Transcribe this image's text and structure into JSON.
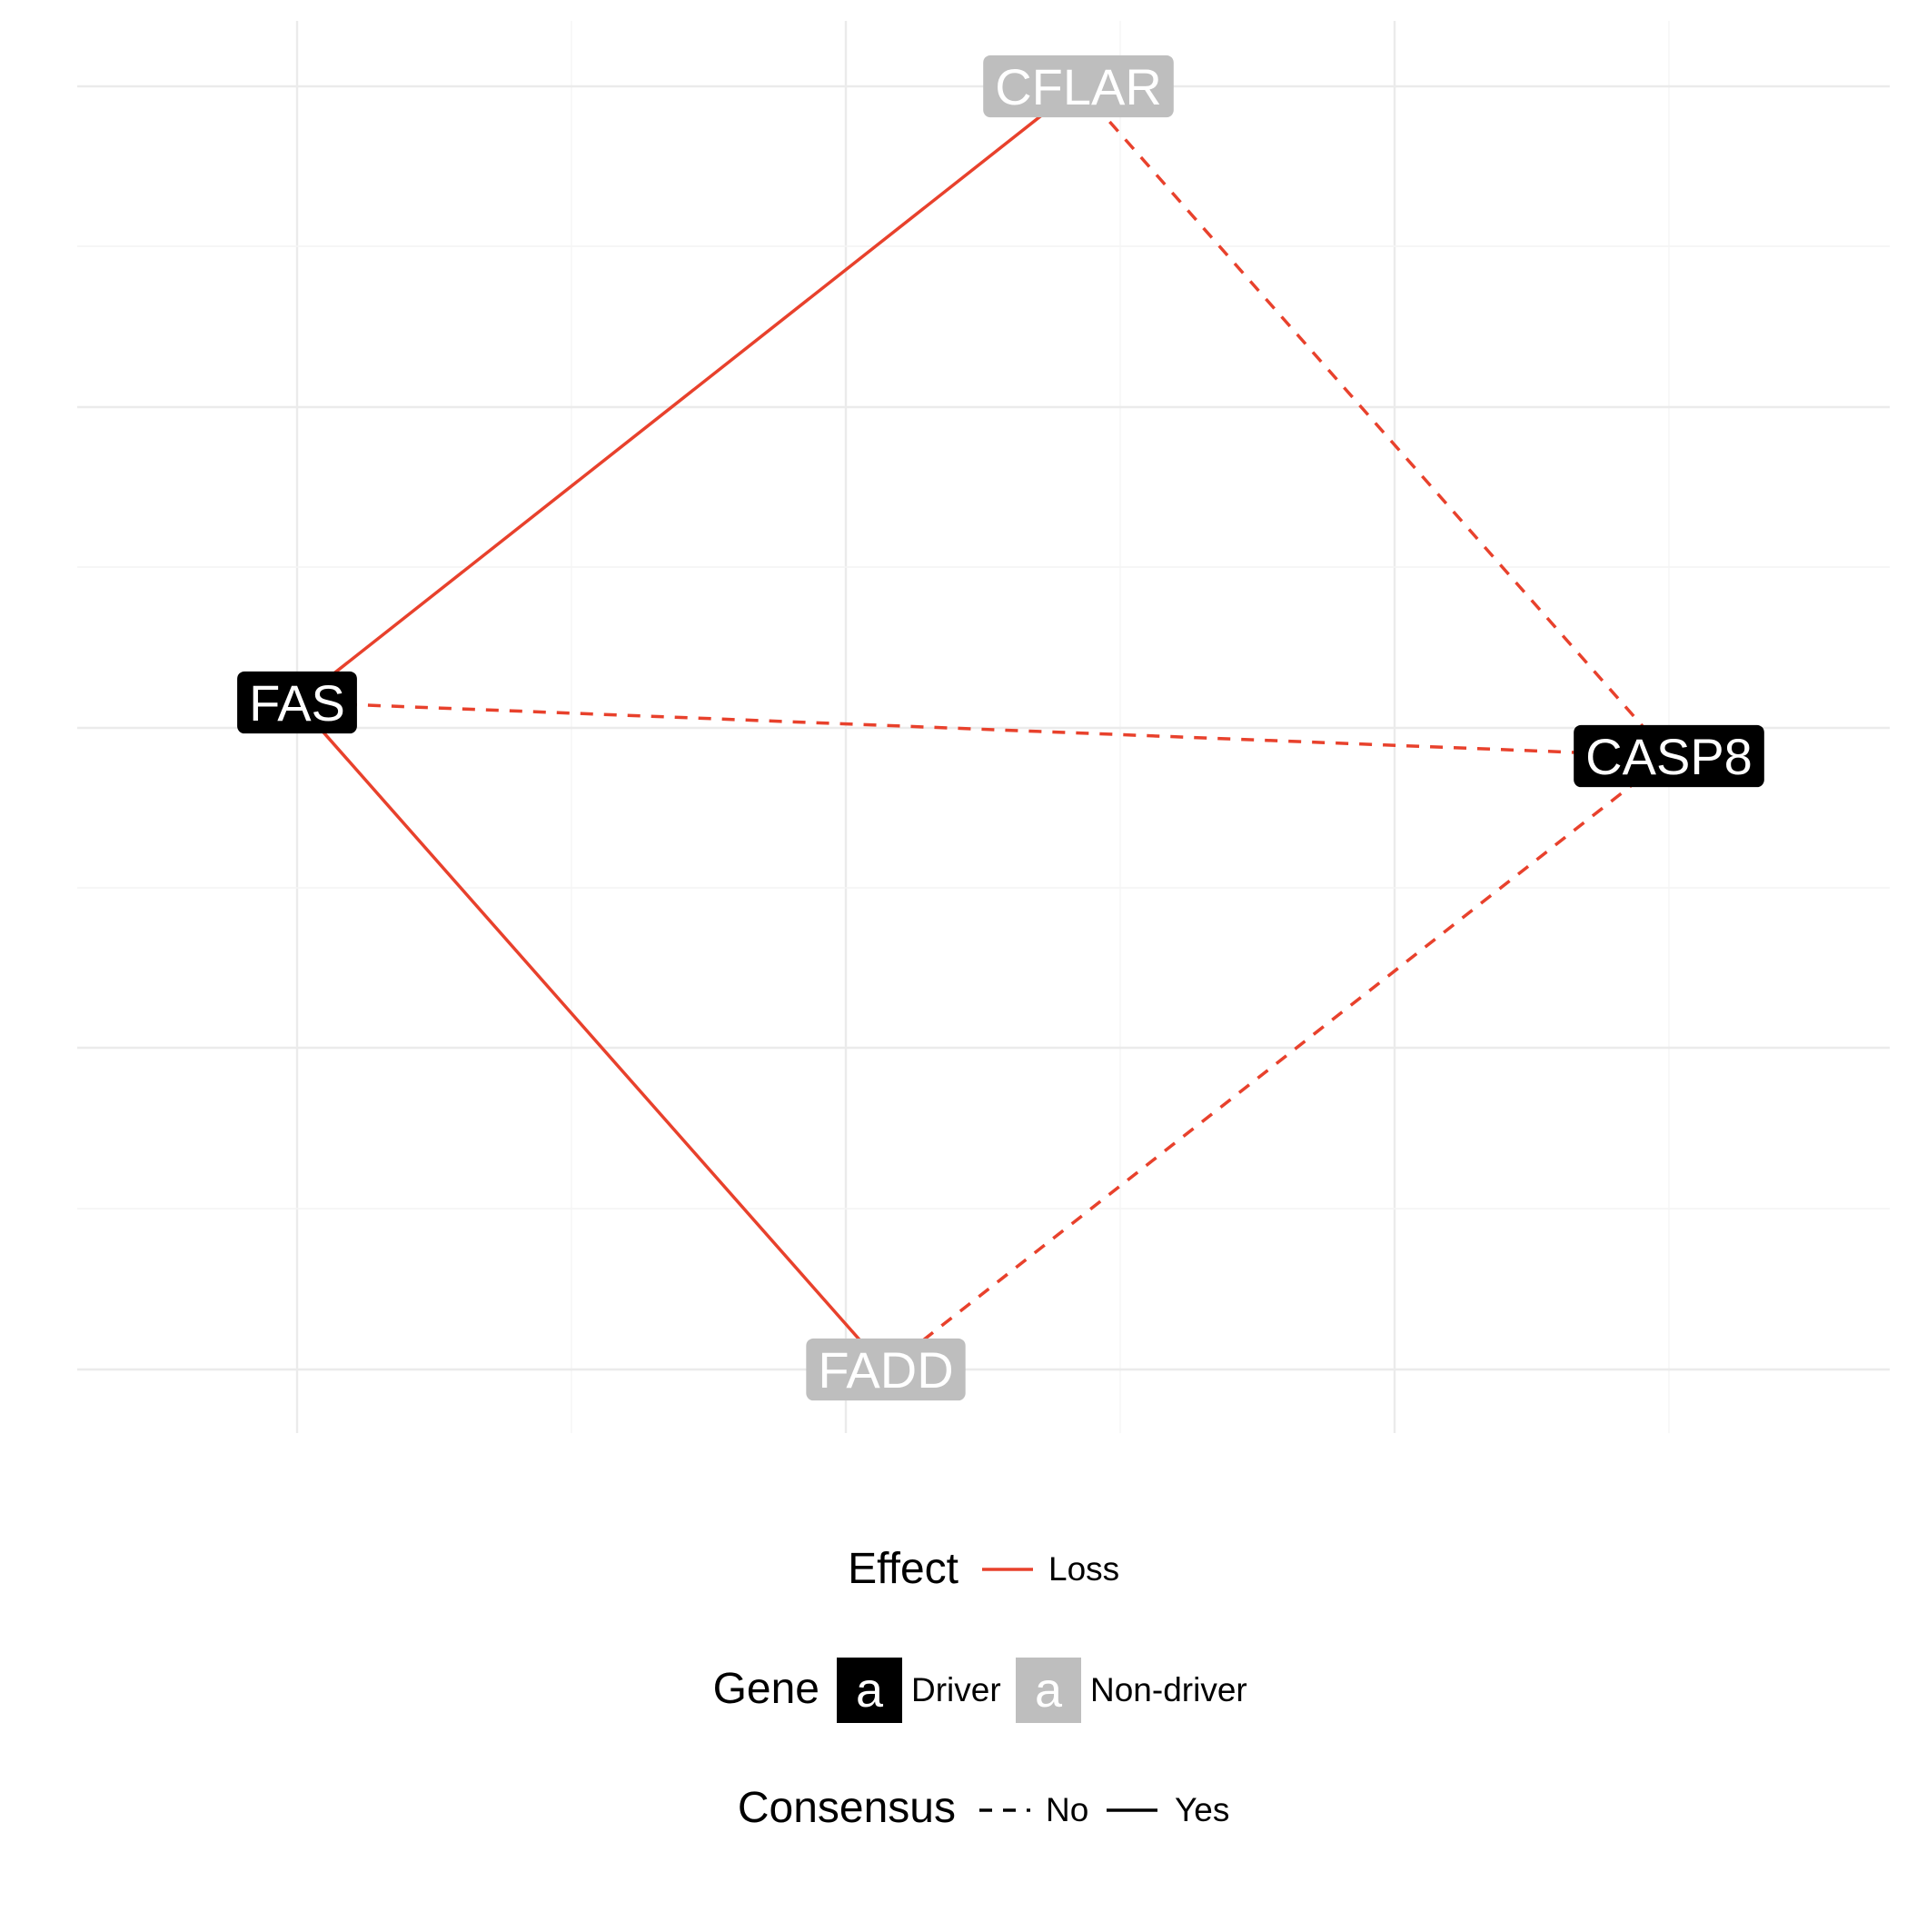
{
  "chart_data": {
    "type": "network",
    "grid": true,
    "legend_position": "bottom",
    "nodes": [
      {
        "id": "CFLAR",
        "label": "CFLAR",
        "status": "Non-driver"
      },
      {
        "id": "FAS",
        "label": "FAS",
        "status": "Driver"
      },
      {
        "id": "CASP8",
        "label": "CASP8",
        "status": "Driver"
      },
      {
        "id": "FADD",
        "label": "FADD",
        "status": "Non-driver"
      }
    ],
    "edges": [
      {
        "from": "FAS",
        "to": "CFLAR",
        "effect": "Loss",
        "consensus": "Yes"
      },
      {
        "from": "CFLAR",
        "to": "CASP8",
        "effect": "Loss",
        "consensus": "No"
      },
      {
        "from": "FAS",
        "to": "CASP8",
        "effect": "Loss",
        "consensus": "No"
      },
      {
        "from": "FAS",
        "to": "FADD",
        "effect": "Loss",
        "consensus": "Yes"
      },
      {
        "from": "FADD",
        "to": "CASP8",
        "effect": "Loss",
        "consensus": "No"
      }
    ]
  },
  "legend": {
    "effect": {
      "title": "Effect",
      "items": [
        {
          "label": "Loss",
          "color": "#e8412c"
        }
      ]
    },
    "gene": {
      "title": "Gene",
      "key_glyph": "a",
      "items": [
        {
          "label": "Driver",
          "fill": "#000000",
          "text_color": "#ffffff"
        },
        {
          "label": "Non-driver",
          "fill": "#bebebe",
          "text_color": "#ffffff"
        }
      ]
    },
    "consensus": {
      "title": "Consensus",
      "items": [
        {
          "label": "No",
          "linetype": "dashed"
        },
        {
          "label": "Yes",
          "linetype": "solid"
        }
      ]
    }
  },
  "colors": {
    "edge": "#e8412c",
    "driver": "#000000",
    "non_driver": "#bebebe",
    "grid": "#ebebeb"
  }
}
